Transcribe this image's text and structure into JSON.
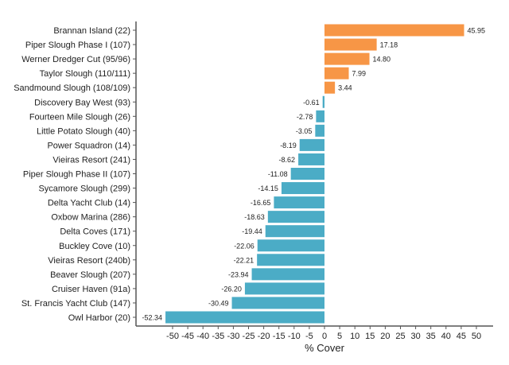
{
  "chart_data": {
    "type": "bar",
    "orientation": "horizontal",
    "xlabel": "% Cover",
    "xlim": [
      -62,
      55.5
    ],
    "xticks": [
      -50,
      -45,
      -40,
      -35,
      -30,
      -25,
      -20,
      -15,
      -10,
      -5,
      0,
      5,
      10,
      15,
      20,
      25,
      30,
      35,
      40,
      45,
      50
    ],
    "grid": false,
    "colors": {
      "positive": "#f79646",
      "negative": "#4bacc6"
    },
    "categories": [
      "Brannan Island (22)",
      "Piper Slough Phase I (107)",
      "Werner Dredger Cut (95/96)",
      "Taylor Slough (110/111)",
      "Sandmound Slough (108/109)",
      "Discovery Bay West (93)",
      "Fourteen Mile Slough (26)",
      "Little Potato Slough (40)",
      "Power Squadron (14)",
      "Vieiras Resort (241)",
      "Piper Slough Phase II (107)",
      "Sycamore Slough (299)",
      "Delta Yacht Club (14)",
      "Oxbow Marina (286)",
      "Delta Coves (171)",
      "Buckley Cove (10)",
      "Vieiras Resort (240b)",
      "Beaver Slough (207)",
      "Cruiser Haven (91a)",
      "St. Francis Yacht Club (147)",
      "Owl Harbor (20)"
    ],
    "values": [
      45.95,
      17.18,
      14.8,
      7.99,
      3.44,
      -0.61,
      -2.78,
      -3.05,
      -8.19,
      -8.62,
      -11.08,
      -14.15,
      -16.65,
      -18.63,
      -19.44,
      -22.06,
      -22.21,
      -23.94,
      -26.2,
      -30.49,
      -52.34
    ],
    "labels": [
      "45.95",
      "17.18",
      "14.80",
      "7.99",
      "3.44",
      "-0.61",
      "-2.78",
      "-3.05",
      "-8.19",
      "-8.62",
      "-11.08",
      "-14.15",
      "-16.65",
      "-18.63",
      "-19.44",
      "-22.06",
      "-22.21",
      "-23.94",
      "-26.20",
      "-30.49",
      "-52.34"
    ]
  }
}
